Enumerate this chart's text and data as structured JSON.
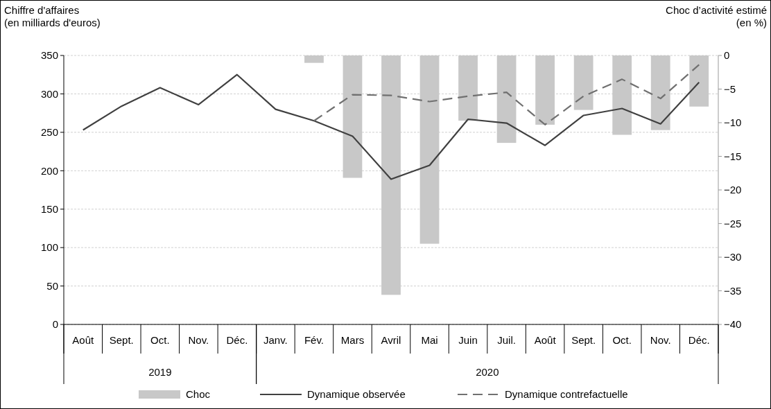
{
  "chart_data": {
    "type": "bar",
    "ylabel": "Chiffre d'affaires\n(en milliards d'euros)",
    "y2label": "Choc d’activité estimé\n(en %)",
    "categories": [
      "Août",
      "Sept.",
      "Oct.",
      "Nov.",
      "Déc.",
      "Janv.",
      "Fév.",
      "Mars",
      "Avril",
      "Mai",
      "Juin",
      "Juil.",
      "Août",
      "Sept.",
      "Oct.",
      "Nov.",
      "Déc."
    ],
    "series": [
      {
        "name": "Choc",
        "axis": "y2",
        "color": "#c8c8c8",
        "values": [
          null,
          null,
          null,
          null,
          null,
          null,
          -1.1,
          -18.2,
          -35.6,
          -28.0,
          -9.7,
          -13.0,
          -10.3,
          -8.1,
          -11.8,
          -11.1,
          -7.6
        ]
      },
      {
        "name": "Dynamique observée",
        "type": "line",
        "color": "#404040",
        "line_style": "solid",
        "values": [
          253,
          284,
          308,
          286,
          325,
          280,
          265,
          245,
          189,
          207,
          267,
          262,
          233,
          272,
          281,
          261,
          315
        ]
      },
      {
        "name": "Dynamique contrefactuelle",
        "type": "line",
        "color": "#707070",
        "line_style": "dashed",
        "values": [
          null,
          null,
          null,
          null,
          null,
          null,
          265,
          299,
          298,
          290,
          297,
          302,
          260,
          297,
          319,
          294,
          338
        ]
      }
    ],
    "ylim": [
      0,
      350
    ],
    "yticks": [
      0,
      50,
      100,
      150,
      200,
      250,
      300,
      350
    ],
    "y2lim": [
      -40,
      0
    ],
    "y2ticks": [
      {
        "value": -40,
        "label": "−40"
      },
      {
        "value": -35,
        "label": "−35"
      },
      {
        "value": -30,
        "label": "−30"
      },
      {
        "value": -25,
        "label": "−25"
      },
      {
        "value": -20,
        "label": "−20"
      },
      {
        "value": -15,
        "label": "−15"
      },
      {
        "value": -10,
        "label": "−10"
      },
      {
        "value": -5,
        "label": "−5"
      },
      0
    ],
    "annotations": [
      "2019",
      "2020"
    ],
    "grid": "y",
    "legend": "bottom"
  }
}
